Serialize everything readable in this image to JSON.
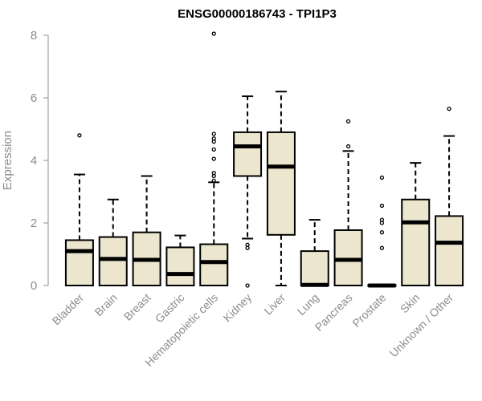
{
  "chart_data": {
    "type": "boxplot",
    "title": "ENSG00000186743 - TPI1P3",
    "xlabel": "",
    "ylabel": "Expression",
    "ylim": [
      0,
      8
    ],
    "yticks": [
      0,
      2,
      4,
      6,
      8
    ],
    "grid": false,
    "colors": {
      "box_fill": "#ede6ce",
      "stroke": "#000000",
      "axis": "#8c8c8c"
    },
    "categories": [
      "Bladder",
      "Brain",
      "Breast",
      "Gastric",
      "Hematopoietic cells",
      "Kidney",
      "Liver",
      "Lung",
      "Pancreas",
      "Prostate",
      "Skin",
      "Unknown / Other"
    ],
    "boxes": [
      {
        "category": "Bladder",
        "whisker_low": 0,
        "q1": 0,
        "median": 1.1,
        "q3": 1.45,
        "whisker_high": 3.55,
        "outliers": [
          4.8
        ]
      },
      {
        "category": "Brain",
        "whisker_low": 0,
        "q1": 0,
        "median": 0.85,
        "q3": 1.55,
        "whisker_high": 2.75,
        "outliers": []
      },
      {
        "category": "Breast",
        "whisker_low": 0,
        "q1": 0,
        "median": 0.82,
        "q3": 1.7,
        "whisker_high": 3.5,
        "outliers": []
      },
      {
        "category": "Gastric",
        "whisker_low": 0,
        "q1": 0,
        "median": 0.37,
        "q3": 1.22,
        "whisker_high": 1.6,
        "outliers": []
      },
      {
        "category": "Hematopoietic cells",
        "whisker_low": 0,
        "q1": 0,
        "median": 0.75,
        "q3": 1.32,
        "whisker_high": 3.3,
        "outliers": [
          3.35,
          3.5,
          3.6,
          4.05,
          4.35,
          4.6,
          4.7,
          4.85,
          8.05
        ]
      },
      {
        "category": "Kidney",
        "whisker_low": 1.5,
        "q1": 3.5,
        "median": 4.45,
        "q3": 4.9,
        "whisker_high": 6.05,
        "outliers": [
          1.2,
          1.3,
          0.0
        ]
      },
      {
        "category": "Liver",
        "whisker_low": 0,
        "q1": 1.62,
        "median": 3.8,
        "q3": 4.9,
        "whisker_high": 6.2,
        "outliers": []
      },
      {
        "category": "Lung",
        "whisker_low": 0,
        "q1": 0,
        "median": 0.02,
        "q3": 1.1,
        "whisker_high": 2.1,
        "outliers": []
      },
      {
        "category": "Pancreas",
        "whisker_low": 0,
        "q1": 0,
        "median": 0.82,
        "q3": 1.77,
        "whisker_high": 4.3,
        "outliers": [
          4.45,
          5.25
        ]
      },
      {
        "category": "Prostate",
        "whisker_low": 0,
        "q1": 0,
        "median": 0.0,
        "q3": 0.02,
        "whisker_high": 0.02,
        "outliers": [
          1.2,
          1.7,
          2.0,
          2.1,
          2.55,
          3.45
        ]
      },
      {
        "category": "Skin",
        "whisker_low": 0,
        "q1": 0,
        "median": 2.02,
        "q3": 2.75,
        "whisker_high": 3.92,
        "outliers": []
      },
      {
        "category": "Unknown / Other",
        "whisker_low": 0,
        "q1": 0,
        "median": 1.37,
        "q3": 2.22,
        "whisker_high": 4.78,
        "outliers": [
          5.65
        ]
      }
    ]
  }
}
